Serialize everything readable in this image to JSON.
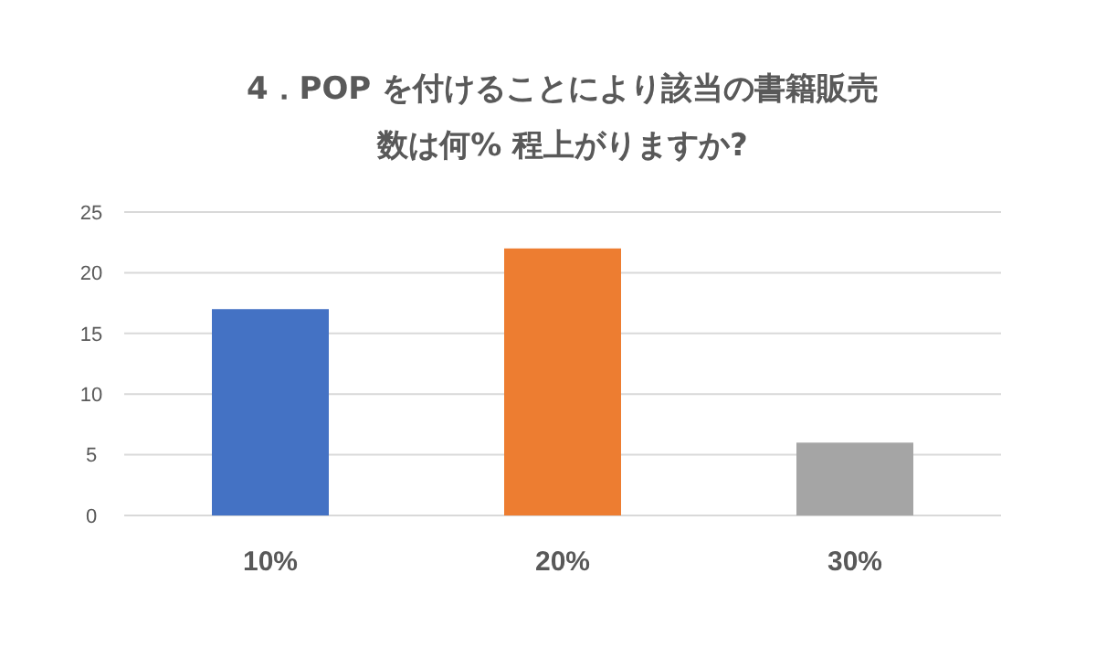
{
  "chart_data": {
    "type": "bar",
    "title": "4．POP を付けることにより該当の書籍販売数は何% 程上がりますか?",
    "categories": [
      "10%",
      "20%",
      "30%"
    ],
    "values": [
      17,
      22,
      6
    ],
    "colors": [
      "#4472c4",
      "#ed7d31",
      "#a5a5a5"
    ],
    "ylim": [
      0,
      25
    ],
    "yticks": [
      0,
      5,
      10,
      15,
      20,
      25
    ],
    "grid": "y"
  }
}
